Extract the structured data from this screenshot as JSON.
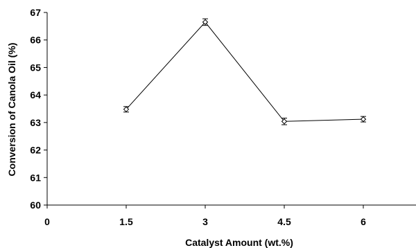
{
  "chart_data": {
    "type": "line",
    "title": "",
    "xlabel": "Catalyst Amount  (wt.%)",
    "ylabel": "Conversion of Canola Oil (%)",
    "xlim": [
      0,
      7
    ],
    "ylim": [
      60,
      67
    ],
    "x_ticks": [
      0,
      1.5,
      3,
      4.5,
      6
    ],
    "x_tick_labels": [
      "0",
      "1.5",
      "3",
      "4.5",
      "6"
    ],
    "y_ticks": [
      60,
      61,
      62,
      63,
      64,
      65,
      66,
      67
    ],
    "y_tick_labels": [
      "60",
      "61",
      "62",
      "63",
      "64",
      "65",
      "66",
      "67"
    ],
    "grid": false,
    "marker": "diamond",
    "series": [
      {
        "x": [
          1.5,
          3,
          4.5,
          6
        ],
        "values": [
          63.48,
          66.65,
          63.04,
          63.12
        ],
        "error": [
          0.1,
          0.12,
          0.12,
          0.1
        ]
      }
    ]
  }
}
